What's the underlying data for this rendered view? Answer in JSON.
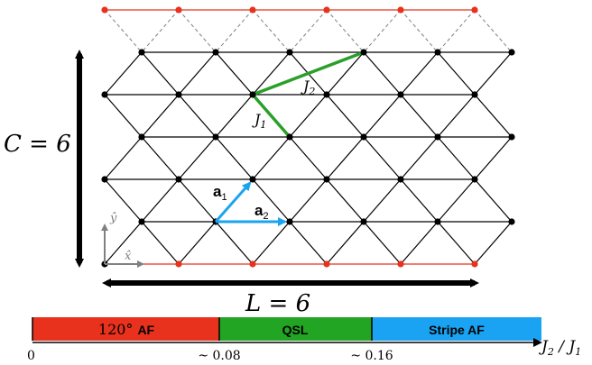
{
  "labels": {
    "C_label": "C = 6",
    "L_label": "L = 6",
    "J1": "J",
    "J1_sub": "1",
    "J2": "J",
    "J2_sub": "2",
    "a1": "a",
    "a1_sub": "1",
    "a2": "a",
    "a2_sub": "2",
    "x_hat": "x̂",
    "y_hat": "ŷ"
  },
  "phase_bar": {
    "segments": [
      {
        "prefix": "120°",
        "name": "AF",
        "color": "#e8321e"
      },
      {
        "prefix": "",
        "name": "QSL",
        "color": "#22a523"
      },
      {
        "prefix": "",
        "name": "Stripe AF",
        "color": "#1aa3f2"
      }
    ],
    "ticks": [
      "0",
      "~ 0.08",
      "~ 0.16"
    ],
    "axis_label": "J",
    "axis_label_sub1": "2",
    "axis_sep": " / J",
    "axis_label_sub2": "1"
  },
  "colors": {
    "lattice": "#000000",
    "boundary": "#e8321e",
    "ghost": "#888888",
    "bond_green": "#2aa02a",
    "vector_blue": "#1aa3f2",
    "axis_gray": "#808080"
  }
}
